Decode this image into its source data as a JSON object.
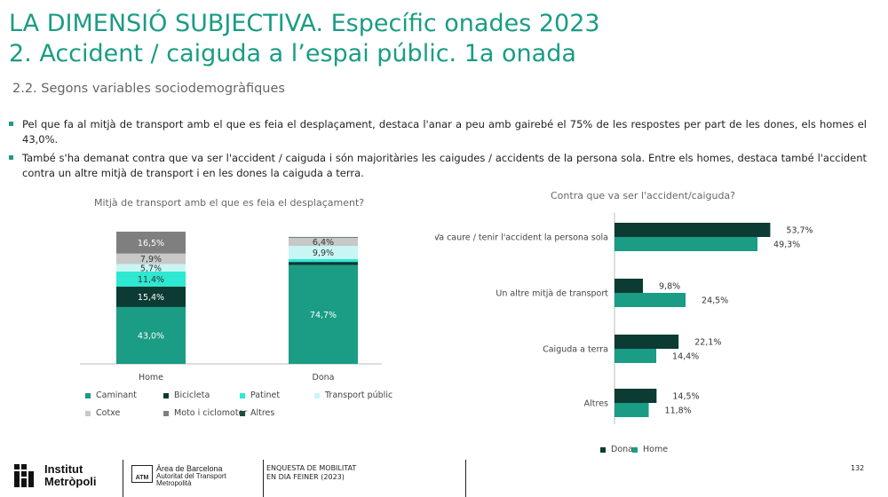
{
  "header": {
    "title_line1": "LA DIMENSIÓ SUBJECTIVA. Específic onades 2023",
    "title_line2": "2. Accident / caiguda a l’espai públic. 1a onada",
    "subtitle": "2.2. Segons variables sociodemogràfiques"
  },
  "bullets": [
    "Pel que fa al mitjà de transport amb el que es feia el desplaçament, destaca l'anar a peu amb gairebé el 75% de les respostes per part de les dones, els homes el 43,0%.",
    "També s'ha demanat contra que va ser l'accident / caiguda i són majoritàries les caigudes / accidents de la persona sola. Entre els homes, destaca també l'accident contra un altre mitjà de transport i en les dones la caiguda a terra."
  ],
  "colors": {
    "caminant": "#1a9c85",
    "bicicleta": "#0b3b33",
    "patinet": "#2ee8d2",
    "transport_public": "#c8f6f4",
    "cotxe": "#c8c8c8",
    "moto": "#7f7f7f",
    "altres": "#1e4d46",
    "dona": "#0b3b33",
    "home": "#1a9c85"
  },
  "chart_data": [
    {
      "type": "bar",
      "stacked": true,
      "orientation": "vertical",
      "title": "Mitjà de transport amb el que es feia el desplaçament?",
      "categories": [
        "Home",
        "Dona"
      ],
      "ylim": [
        0,
        100
      ],
      "series": [
        {
          "name": "Caminant",
          "key": "caminant",
          "values": [
            43.0,
            74.7
          ],
          "labels": [
            "43,0%",
            "74,7%"
          ]
        },
        {
          "name": "Bicicleta",
          "key": "bicicleta",
          "values": [
            15.4,
            2.4
          ],
          "labels": [
            "15,4%",
            ""
          ]
        },
        {
          "name": "Patinet",
          "key": "patinet",
          "values": [
            11.4,
            2.2
          ],
          "labels": [
            "11,4%",
            ""
          ]
        },
        {
          "name": "Transport públic",
          "key": "transport_public",
          "values": [
            5.7,
            9.9
          ],
          "labels": [
            "5,7%",
            "9,9%"
          ]
        },
        {
          "name": "Cotxe",
          "key": "cotxe",
          "values": [
            7.9,
            6.4
          ],
          "labels": [
            "7,9%",
            "6,4%"
          ]
        },
        {
          "name": "Moto i ciclomotor",
          "key": "moto",
          "values": [
            16.5,
            0.0
          ],
          "labels": [
            "16,5%",
            ""
          ]
        },
        {
          "name": "Altres",
          "key": "altres",
          "values": [
            0.1,
            0.4
          ],
          "labels": [
            "",
            ""
          ]
        }
      ]
    },
    {
      "type": "bar",
      "orientation": "horizontal",
      "title": "Contra que va ser l'accident/caiguda?",
      "categories": [
        "Va caure / tenir l'accident la persona sola",
        "Un altre mitjà de transport",
        "Caiguda a terra",
        "Altres"
      ],
      "xlim": [
        0,
        60
      ],
      "series": [
        {
          "name": "Dona",
          "key": "dona",
          "values": [
            53.7,
            9.8,
            22.1,
            14.5
          ],
          "labels": [
            "53,7%",
            "9,8%",
            "22,1%",
            "14,5%"
          ]
        },
        {
          "name": "Home",
          "key": "home",
          "values": [
            49.3,
            24.5,
            14.4,
            11.8
          ],
          "labels": [
            "49,3%",
            "24,5%",
            "14,4%",
            "11,8%"
          ]
        }
      ]
    }
  ],
  "footer": {
    "logo_line1": "Institut",
    "logo_line2": "Metròpoli",
    "atm_box": "ATM",
    "atm_line1": "Àrea de Barcelona",
    "atm_line2": "Autoritat del Transport",
    "atm_line3": "Metropolità",
    "survey_line1": "ENQUESTA DE MOBILITAT",
    "survey_line2": "EN DIA FEINER (2023)",
    "page_number": "132"
  }
}
